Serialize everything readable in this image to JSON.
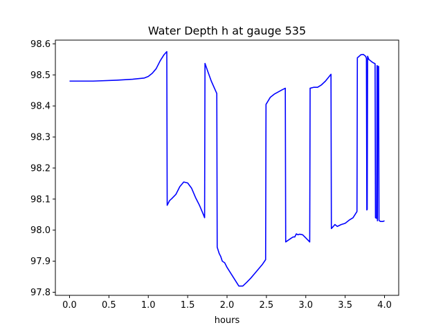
{
  "chart_data": {
    "type": "line",
    "title": "Water Depth h at gauge 535",
    "xlabel": "hours",
    "ylabel": "",
    "xlim": [
      -0.18,
      4.18
    ],
    "ylim": [
      97.79,
      98.612
    ],
    "grid": false,
    "legend": "none",
    "line_color": "#0000ff",
    "xticks": [
      {
        "value": 0.0,
        "label": "0.0"
      },
      {
        "value": 0.5,
        "label": "0.5"
      },
      {
        "value": 1.0,
        "label": "1.0"
      },
      {
        "value": 1.5,
        "label": "1.5"
      },
      {
        "value": 2.0,
        "label": "2.0"
      },
      {
        "value": 2.5,
        "label": "2.5"
      },
      {
        "value": 3.0,
        "label": "3.0"
      },
      {
        "value": 3.5,
        "label": "3.5"
      },
      {
        "value": 4.0,
        "label": "4.0"
      }
    ],
    "yticks": [
      {
        "value": 97.8,
        "label": "97.8"
      },
      {
        "value": 97.9,
        "label": "97.9"
      },
      {
        "value": 98.0,
        "label": "98.0"
      },
      {
        "value": 98.1,
        "label": "98.1"
      },
      {
        "value": 98.2,
        "label": "98.2"
      },
      {
        "value": 98.3,
        "label": "98.3"
      },
      {
        "value": 98.4,
        "label": "98.4"
      },
      {
        "value": 98.5,
        "label": "98.5"
      },
      {
        "value": 98.6,
        "label": "98.6"
      }
    ],
    "series": [
      {
        "x": [
          0.0,
          0.3,
          0.6,
          0.8,
          0.95,
          1.0,
          1.05,
          1.1,
          1.15,
          1.2,
          1.235,
          1.24,
          1.27,
          1.3,
          1.35,
          1.4,
          1.45,
          1.5,
          1.55,
          1.6,
          1.65,
          1.7,
          1.715,
          1.72,
          1.75,
          1.8,
          1.87,
          1.875,
          1.9,
          1.92,
          1.94,
          1.97,
          2.0,
          2.05,
          2.1,
          2.15,
          2.2,
          2.25,
          2.3,
          2.35,
          2.4,
          2.45,
          2.49,
          2.495,
          2.55,
          2.6,
          2.65,
          2.7,
          2.74,
          2.745,
          2.78,
          2.82,
          2.84,
          2.86,
          2.88,
          2.9,
          2.92,
          2.96,
          3.0,
          3.05,
          3.055,
          3.1,
          3.15,
          3.2,
          3.25,
          3.32,
          3.325,
          3.35,
          3.37,
          3.4,
          3.45,
          3.5,
          3.55,
          3.6,
          3.65,
          3.655,
          3.7,
          3.73,
          3.76,
          3.77,
          3.775,
          3.78,
          3.785,
          3.8,
          3.85,
          3.88,
          3.885,
          3.9,
          3.905,
          3.91,
          3.915,
          3.925,
          3.93,
          3.935,
          3.95,
          3.98,
          4.0
        ],
        "y": [
          98.48,
          98.48,
          98.483,
          98.486,
          98.49,
          98.495,
          98.505,
          98.52,
          98.545,
          98.565,
          98.575,
          98.08,
          98.095,
          98.102,
          98.115,
          98.14,
          98.155,
          98.152,
          98.135,
          98.105,
          98.08,
          98.05,
          98.04,
          98.537,
          98.515,
          98.48,
          98.44,
          97.945,
          97.925,
          97.915,
          97.9,
          97.895,
          97.88,
          97.86,
          97.84,
          97.82,
          97.82,
          97.832,
          97.845,
          97.86,
          97.875,
          97.89,
          97.905,
          98.405,
          98.428,
          98.438,
          98.445,
          98.452,
          98.457,
          97.962,
          97.968,
          97.975,
          97.978,
          97.978,
          97.988,
          97.985,
          97.987,
          97.985,
          97.975,
          97.962,
          98.457,
          98.46,
          98.46,
          98.468,
          98.48,
          98.502,
          98.005,
          98.012,
          98.018,
          98.012,
          98.018,
          98.022,
          98.032,
          98.04,
          98.06,
          98.555,
          98.565,
          98.566,
          98.56,
          98.553,
          98.065,
          98.067,
          98.56,
          98.55,
          98.54,
          98.536,
          98.04,
          98.038,
          98.53,
          98.03,
          98.528,
          98.527,
          98.032,
          98.03,
          98.028,
          98.028,
          98.03
        ]
      }
    ]
  }
}
